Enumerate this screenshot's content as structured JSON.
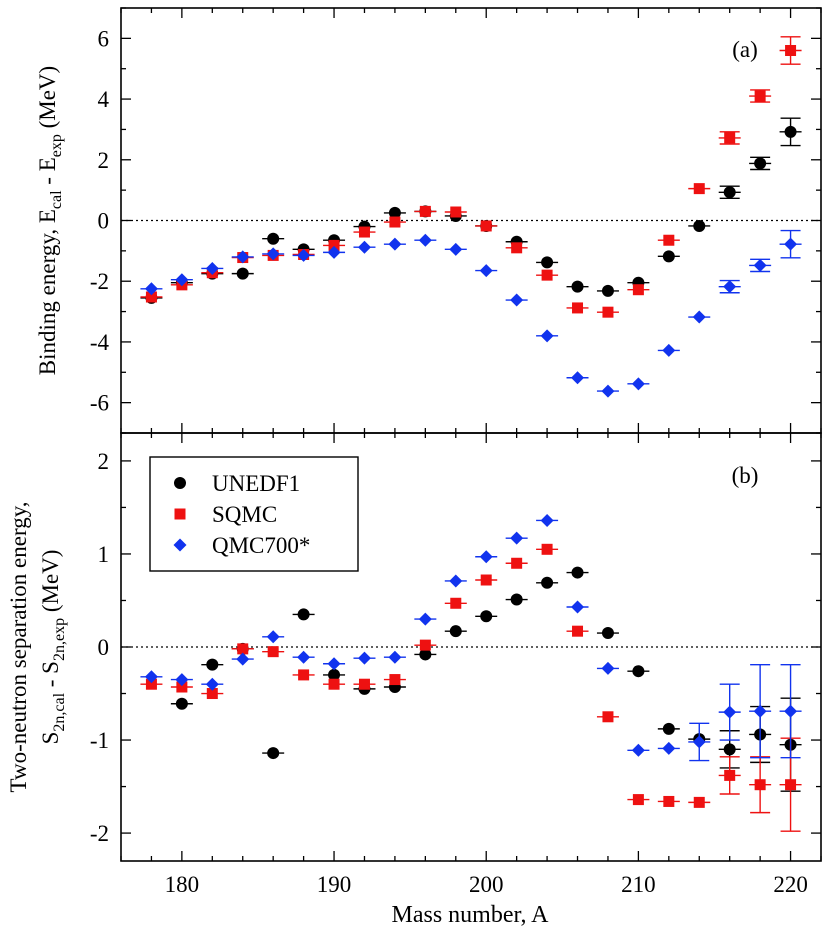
{
  "colors": {
    "unedf1": "#000000",
    "sqmc": "#ee1111",
    "qmc700": "#1133ee",
    "axis": "#000000"
  },
  "chart_data": [
    {
      "type": "scatter",
      "panel_label": "(a)",
      "xlabel": "Mass number, A",
      "ylabel_parts": [
        "Binding energy, E",
        "cal",
        " - E",
        "exp",
        " (MeV)"
      ],
      "xlim": [
        176,
        222
      ],
      "ylim": [
        -7,
        7
      ],
      "xticks": [
        180,
        190,
        200,
        210,
        220
      ],
      "yticks": [
        -6,
        -4,
        -2,
        0,
        2,
        4,
        6
      ],
      "zero_line": true,
      "series": [
        {
          "name": "UNEDF1",
          "marker": "circle",
          "x": [
            178,
            180,
            182,
            184,
            186,
            188,
            190,
            192,
            194,
            196,
            198,
            200,
            202,
            204,
            206,
            208,
            210,
            212,
            214,
            216,
            218,
            220
          ],
          "y": [
            -2.55,
            -2.05,
            -1.75,
            -1.75,
            -0.6,
            -0.95,
            -0.65,
            -0.2,
            0.25,
            0.3,
            0.15,
            -0.18,
            -0.7,
            -1.38,
            -2.18,
            -2.32,
            -2.05,
            -1.18,
            -0.18,
            0.93,
            1.88,
            2.92
          ],
          "err": [
            0.05,
            0.05,
            0.05,
            0.05,
            0.05,
            0.05,
            0.05,
            0.05,
            0.05,
            0.05,
            0.05,
            0.05,
            0.05,
            0.05,
            0.05,
            0.05,
            0.05,
            0.05,
            0.05,
            0.2,
            0.2,
            0.45
          ]
        },
        {
          "name": "SQMC",
          "marker": "square",
          "x": [
            178,
            180,
            182,
            184,
            186,
            188,
            190,
            192,
            194,
            196,
            198,
            200,
            202,
            204,
            206,
            208,
            210,
            212,
            214,
            216,
            218,
            220
          ],
          "y": [
            -2.52,
            -2.12,
            -1.72,
            -1.22,
            -1.15,
            -1.12,
            -0.82,
            -0.38,
            -0.05,
            0.3,
            0.28,
            -0.18,
            -0.9,
            -1.8,
            -2.88,
            -3.02,
            -2.28,
            -0.65,
            1.05,
            2.72,
            4.1,
            5.6
          ],
          "err": [
            0.05,
            0.05,
            0.05,
            0.05,
            0.05,
            0.05,
            0.05,
            0.05,
            0.05,
            0.05,
            0.05,
            0.05,
            0.05,
            0.05,
            0.05,
            0.05,
            0.05,
            0.05,
            0.05,
            0.2,
            0.2,
            0.45
          ]
        },
        {
          "name": "QMC700*",
          "marker": "diamond",
          "x": [
            178,
            180,
            182,
            184,
            186,
            188,
            190,
            192,
            194,
            196,
            198,
            200,
            202,
            204,
            206,
            208,
            210,
            212,
            214,
            216,
            218,
            220
          ],
          "y": [
            -2.25,
            -1.95,
            -1.58,
            -1.2,
            -1.1,
            -1.15,
            -1.05,
            -0.88,
            -0.78,
            -0.65,
            -0.95,
            -1.65,
            -2.62,
            -3.8,
            -5.18,
            -5.62,
            -5.38,
            -4.28,
            -3.18,
            -2.18,
            -1.48,
            -0.78
          ],
          "err": [
            0.05,
            0.05,
            0.05,
            0.05,
            0.05,
            0.05,
            0.05,
            0.05,
            0.05,
            0.05,
            0.05,
            0.05,
            0.05,
            0.05,
            0.05,
            0.05,
            0.05,
            0.05,
            0.05,
            0.2,
            0.2,
            0.45
          ]
        }
      ]
    },
    {
      "type": "scatter",
      "panel_label": "(b)",
      "xlabel": "Mass number, A",
      "ylabel_line1": "Two-neutron separation energy,",
      "ylabel_parts": [
        "S",
        "2n,cal",
        " - S",
        "2n,exp",
        " (MeV)"
      ],
      "xlim": [
        176,
        222
      ],
      "ylim": [
        -2.3,
        2.3
      ],
      "xticks": [
        180,
        190,
        200,
        210,
        220
      ],
      "yticks": [
        -2,
        -1,
        0,
        1,
        2
      ],
      "zero_line": true,
      "legend_position": "top-left",
      "series": [
        {
          "name": "UNEDF1",
          "marker": "circle",
          "x": [
            180,
            182,
            184,
            186,
            188,
            190,
            192,
            194,
            196,
            198,
            200,
            202,
            204,
            206,
            208,
            210,
            212,
            214,
            216,
            218,
            220
          ],
          "y": [
            -0.61,
            -0.19,
            -0.02,
            -1.14,
            0.35,
            -0.3,
            -0.45,
            -0.43,
            -0.08,
            0.17,
            0.33,
            0.51,
            0.69,
            0.8,
            0.15,
            -0.26,
            -0.88,
            -0.99,
            -1.1,
            -0.94,
            -1.05
          ],
          "err": [
            0.02,
            0.02,
            0.02,
            0.02,
            0.02,
            0.02,
            0.02,
            0.02,
            0.02,
            0.02,
            0.02,
            0.02,
            0.02,
            0.02,
            0.02,
            0.02,
            0.02,
            0.02,
            0.2,
            0.3,
            0.5
          ]
        },
        {
          "name": "SQMC",
          "marker": "square",
          "x": [
            178,
            180,
            182,
            184,
            186,
            188,
            190,
            192,
            194,
            196,
            198,
            200,
            202,
            204,
            206,
            208,
            210,
            212,
            214,
            216,
            218,
            220
          ],
          "y": [
            -0.4,
            -0.43,
            -0.5,
            -0.02,
            -0.05,
            -0.3,
            -0.4,
            -0.4,
            -0.35,
            0.02,
            0.47,
            0.72,
            0.9,
            1.05,
            0.17,
            -0.75,
            -1.64,
            -1.66,
            -1.67,
            -1.38,
            -1.48,
            -1.48
          ],
          "x_override": true,
          "err": [
            0.02,
            0.02,
            0.02,
            0.02,
            0.02,
            0.02,
            0.02,
            0.02,
            0.02,
            0.02,
            0.02,
            0.02,
            0.02,
            0.02,
            0.02,
            0.02,
            0.02,
            0.02,
            0.02,
            0.2,
            0.3,
            0.5
          ]
        },
        {
          "name": "QMC700*",
          "marker": "diamond",
          "x": [
            178,
            180,
            182,
            184,
            186,
            188,
            190,
            192,
            194,
            196,
            198,
            200,
            202,
            204,
            206,
            208,
            210,
            212,
            214,
            216,
            218,
            220
          ],
          "y": [
            -0.32,
            -0.35,
            -0.4,
            -0.13,
            0.11,
            -0.11,
            -0.18,
            -0.12,
            -0.11,
            0.3,
            0.71,
            0.97,
            1.17,
            1.36,
            0.43,
            -0.23,
            -1.11,
            -1.09,
            -1.02,
            -0.7,
            -0.69,
            -0.69
          ],
          "err": [
            0.02,
            0.02,
            0.02,
            0.02,
            0.02,
            0.02,
            0.02,
            0.02,
            0.02,
            0.02,
            0.02,
            0.02,
            0.02,
            0.02,
            0.02,
            0.02,
            0.02,
            0.02,
            0.2,
            0.3,
            0.5,
            0.5
          ]
        }
      ]
    }
  ]
}
